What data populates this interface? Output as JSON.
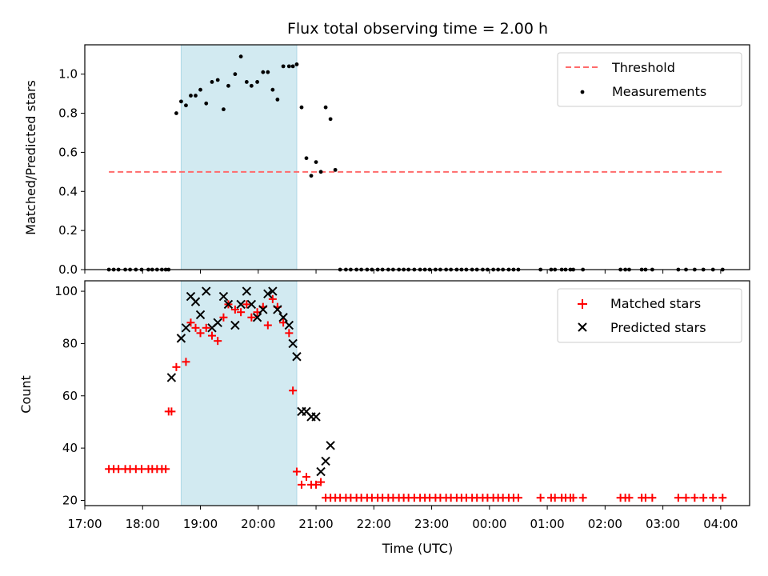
{
  "title": "Flux total observing time = 2.00 h",
  "colors": {
    "band": "#add8e6",
    "threshold": "#ff6b6b",
    "matched": "#ff0000",
    "predicted": "#000000",
    "measure": "#000000"
  },
  "chart_data": [
    {
      "type": "scatter",
      "panel": "top",
      "ylabel": "Matched/Predicted stars",
      "xlim": [
        "17:00",
        "04:30"
      ],
      "ylim": [
        0,
        1.15
      ],
      "yticks": [
        "0.0",
        "0.2",
        "0.4",
        "0.6",
        "0.8",
        "1.0"
      ],
      "legend_position": "upper right",
      "shaded_interval": [
        "18:40",
        "20:40"
      ],
      "threshold": {
        "name": "Threshold",
        "value": 0.5,
        "x_range": [
          "17:25",
          "04:03"
        ],
        "style": "dashed"
      },
      "series": [
        {
          "name": "Measurements",
          "x": [
            "17:25",
            "17:30",
            "17:35",
            "17:42",
            "17:47",
            "17:53",
            "17:59",
            "18:06",
            "18:10",
            "18:15",
            "18:20",
            "18:24",
            "18:27",
            "18:35",
            "18:40",
            "18:45",
            "18:50",
            "18:55",
            "19:00",
            "19:06",
            "19:12",
            "19:18",
            "19:24",
            "19:29",
            "19:36",
            "19:42",
            "19:48",
            "19:53",
            "19:59",
            "20:05",
            "20:10",
            "20:15",
            "20:20",
            "20:26",
            "20:32",
            "20:36",
            "20:40",
            "20:45",
            "20:50",
            "20:55",
            "21:00",
            "21:05",
            "21:10",
            "21:15",
            "21:20",
            "21:25",
            "21:31",
            "21:36",
            "21:42",
            "21:47",
            "21:53",
            "21:58",
            "22:04",
            "22:09",
            "22:15",
            "22:20",
            "22:26",
            "22:31",
            "22:36",
            "22:42",
            "22:48",
            "22:53",
            "22:58",
            "23:04",
            "23:09",
            "23:15",
            "23:20",
            "23:26",
            "23:31",
            "23:36",
            "23:42",
            "23:47",
            "23:53",
            "23:58",
            "00:04",
            "00:09",
            "00:14",
            "00:20",
            "00:25",
            "00:30",
            "00:53",
            "01:04",
            "01:08",
            "01:15",
            "01:19",
            "01:24",
            "01:27",
            "01:37",
            "02:16",
            "02:21",
            "02:25",
            "02:38",
            "02:42",
            "02:49",
            "03:16",
            "03:24",
            "03:33",
            "03:42",
            "03:52",
            "04:02"
          ],
          "y": [
            0,
            0,
            0,
            0,
            0,
            0,
            0,
            0,
            0,
            0,
            0,
            0,
            0,
            0.8,
            0.86,
            0.84,
            0.89,
            0.89,
            0.92,
            0.85,
            0.96,
            0.97,
            0.82,
            0.94,
            1.0,
            1.09,
            0.96,
            0.94,
            0.96,
            1.01,
            1.01,
            0.92,
            0.87,
            1.04,
            1.04,
            1.04,
            1.05,
            0.83,
            0.57,
            0.48,
            0.55,
            0.5,
            0.83,
            0.77,
            0.51,
            0,
            0,
            0,
            0,
            0,
            0,
            0,
            0,
            0,
            0,
            0,
            0,
            0,
            0,
            0,
            0,
            0,
            0,
            0,
            0,
            0,
            0,
            0,
            0,
            0,
            0,
            0,
            0,
            0,
            0,
            0,
            0,
            0,
            0,
            0,
            0,
            0,
            0,
            0,
            0,
            0,
            0,
            0,
            0,
            0,
            0,
            0,
            0,
            0,
            0,
            0,
            0,
            0,
            0,
            0
          ]
        }
      ]
    },
    {
      "type": "scatter",
      "panel": "bottom",
      "xlabel": "Time (UTC)",
      "ylabel": "Count",
      "xlim": [
        "17:00",
        "04:30"
      ],
      "ylim": [
        18,
        104
      ],
      "xticks": [
        "17:00",
        "18:00",
        "19:00",
        "20:00",
        "21:00",
        "22:00",
        "23:00",
        "00:00",
        "01:00",
        "02:00",
        "03:00",
        "04:00"
      ],
      "yticks": [
        "20",
        "40",
        "60",
        "80",
        "100"
      ],
      "legend_position": "upper right",
      "shaded_interval": [
        "18:40",
        "20:40"
      ],
      "series": [
        {
          "name": "Matched stars",
          "marker": "plus",
          "x": [
            "17:25",
            "17:30",
            "17:35",
            "17:42",
            "17:47",
            "17:53",
            "17:59",
            "18:06",
            "18:10",
            "18:15",
            "18:20",
            "18:24",
            "18:27",
            "18:30",
            "18:35",
            "18:45",
            "18:50",
            "18:55",
            "19:00",
            "19:06",
            "19:12",
            "19:18",
            "19:24",
            "19:29",
            "19:36",
            "19:42",
            "19:48",
            "19:53",
            "19:59",
            "20:05",
            "20:10",
            "20:15",
            "20:20",
            "20:26",
            "20:32",
            "20:36",
            "20:40",
            "20:45",
            "20:50",
            "20:55",
            "21:00",
            "21:05",
            "21:10",
            "21:15",
            "21:20",
            "21:25",
            "21:31",
            "21:36",
            "21:42",
            "21:47",
            "21:53",
            "21:58",
            "22:04",
            "22:09",
            "22:15",
            "22:20",
            "22:26",
            "22:31",
            "22:36",
            "22:42",
            "22:48",
            "22:53",
            "22:58",
            "23:04",
            "23:09",
            "23:15",
            "23:20",
            "23:26",
            "23:31",
            "23:36",
            "23:42",
            "23:47",
            "23:53",
            "23:58",
            "00:04",
            "00:09",
            "00:14",
            "00:20",
            "00:25",
            "00:30",
            "00:53",
            "01:04",
            "01:08",
            "01:15",
            "01:19",
            "01:24",
            "01:27",
            "01:37",
            "02:16",
            "02:21",
            "02:25",
            "02:38",
            "02:42",
            "02:49",
            "03:16",
            "03:24",
            "03:33",
            "03:42",
            "03:52",
            "04:02"
          ],
          "y": [
            32,
            32,
            32,
            32,
            32,
            32,
            32,
            32,
            32,
            32,
            32,
            32,
            54,
            54,
            71,
            73,
            88,
            86,
            84,
            86,
            83,
            81,
            90,
            95,
            93,
            92,
            95,
            90,
            92,
            94,
            87,
            97,
            94,
            88,
            84,
            62,
            31,
            26,
            29,
            26,
            26,
            27,
            21,
            21,
            21,
            21,
            21,
            21,
            21,
            21,
            21,
            21,
            21,
            21,
            21,
            21,
            21,
            21,
            21,
            21,
            21,
            21,
            21,
            21,
            21,
            21,
            21,
            21,
            21,
            21,
            21,
            21,
            21,
            21,
            21,
            21,
            21,
            21,
            21,
            21,
            21,
            21,
            21,
            21,
            21,
            21,
            21,
            21,
            21,
            21,
            21,
            21,
            21,
            21,
            21,
            21,
            21,
            21,
            21,
            21
          ]
        },
        {
          "name": "Predicted stars",
          "marker": "x",
          "x": [
            "18:30",
            "18:40",
            "18:45",
            "18:50",
            "18:55",
            "19:00",
            "19:06",
            "19:12",
            "19:18",
            "19:24",
            "19:29",
            "19:36",
            "19:42",
            "19:48",
            "19:53",
            "19:59",
            "20:05",
            "20:10",
            "20:15",
            "20:20",
            "20:26",
            "20:32",
            "20:36",
            "20:40",
            "20:45",
            "20:50",
            "20:55",
            "21:00",
            "21:05",
            "21:10",
            "21:15"
          ],
          "y": [
            67,
            82,
            86,
            98,
            96,
            91,
            100,
            86,
            88,
            98,
            95,
            87,
            95,
            100,
            95,
            90,
            93,
            99,
            100,
            93,
            90,
            87,
            80,
            75,
            54,
            54,
            52,
            52,
            31,
            35,
            41
          ]
        }
      ]
    }
  ]
}
